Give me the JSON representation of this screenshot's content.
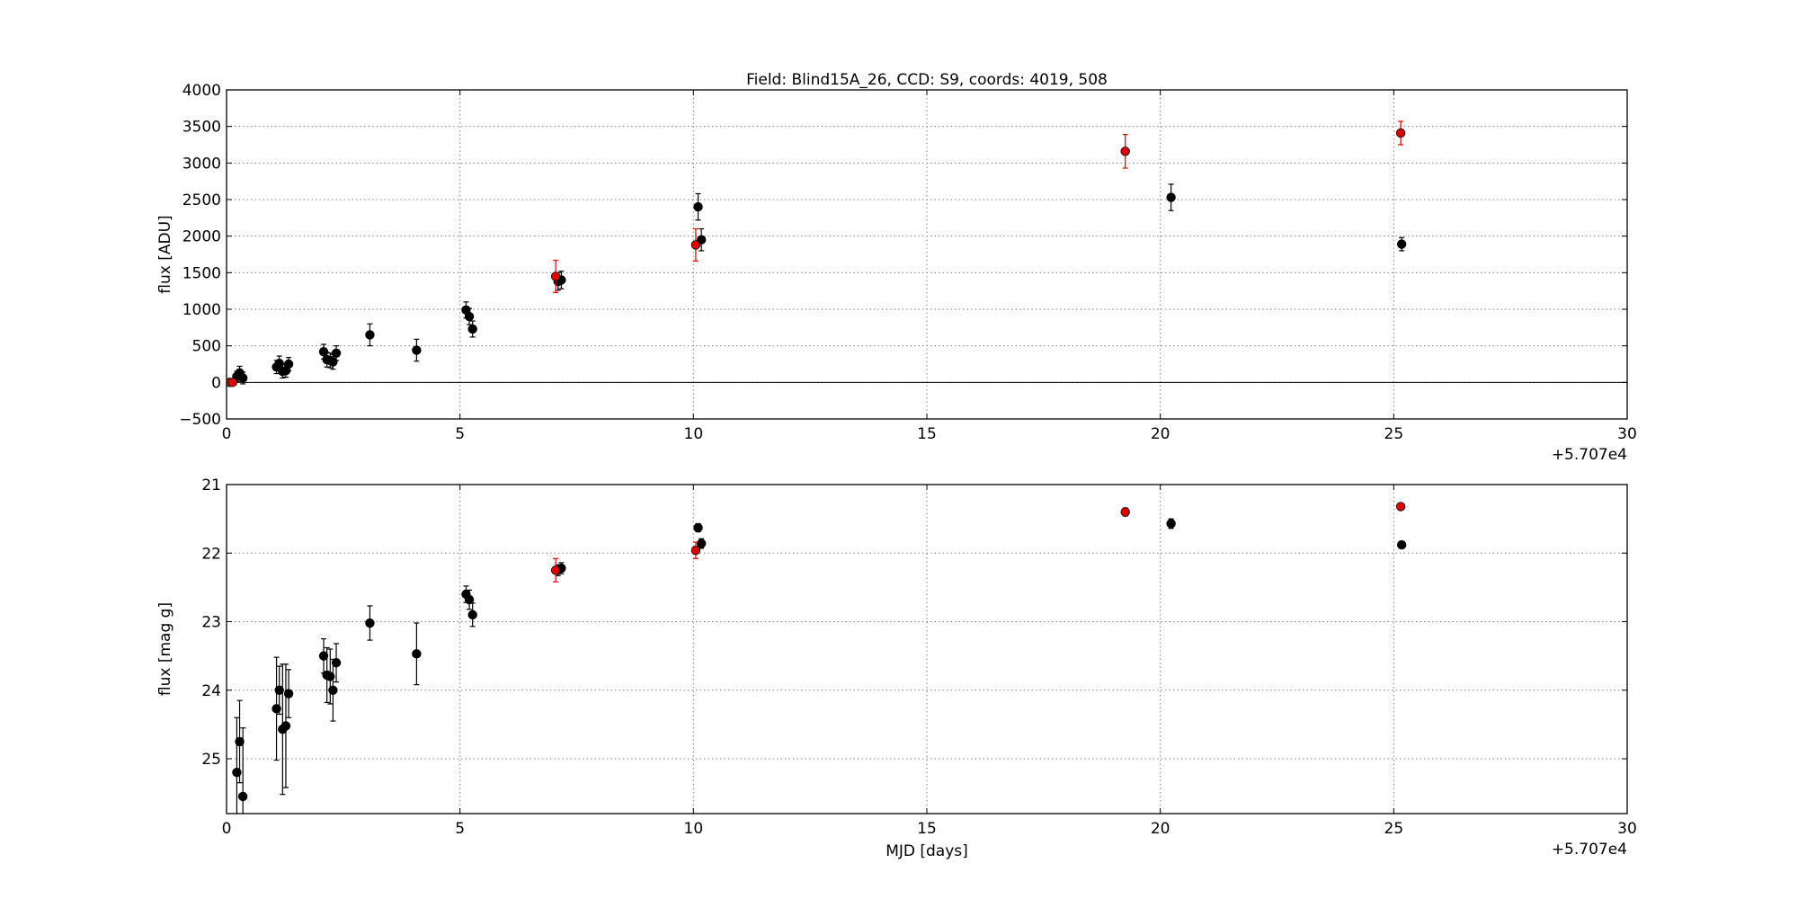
{
  "figure": {
    "title": "Field: Blind15A_26, CCD: S9, coords: 4019, 508",
    "x_offset_label": "+5.707e4",
    "xlabel": "MJD [days]"
  },
  "colors": {
    "black_marker": "#000000",
    "red_marker": "#dd0000",
    "grid": "#808080",
    "zero_line": "#000000"
  },
  "chart_data": [
    {
      "type": "scatter",
      "ylabel": "flux [ADU]",
      "xlabel": "",
      "grid": true,
      "x_offset": 57070,
      "xlim": [
        0,
        30
      ],
      "ylim": [
        -500,
        4000
      ],
      "xticks": [
        "0",
        "5",
        "10",
        "15",
        "20",
        "25",
        "30"
      ],
      "yticks": [
        "4000",
        "3500",
        "3000",
        "2500",
        "2000",
        "1500",
        "1000",
        "500",
        "0",
        "−500"
      ],
      "hline": 0,
      "series": [
        {
          "color": "black",
          "points": [
            {
              "x": 0.22,
              "y": 80,
              "err": 70
            },
            {
              "x": 0.28,
              "y": 130,
              "err": 90
            },
            {
              "x": 0.35,
              "y": 60,
              "err": 80
            },
            {
              "x": 1.07,
              "y": 210,
              "err": 90
            },
            {
              "x": 1.13,
              "y": 260,
              "err": 100
            },
            {
              "x": 1.2,
              "y": 150,
              "err": 90
            },
            {
              "x": 1.27,
              "y": 160,
              "err": 90
            },
            {
              "x": 1.33,
              "y": 250,
              "err": 90
            },
            {
              "x": 2.08,
              "y": 420,
              "err": 100
            },
            {
              "x": 2.15,
              "y": 310,
              "err": 100
            },
            {
              "x": 2.22,
              "y": 300,
              "err": 100
            },
            {
              "x": 2.28,
              "y": 280,
              "err": 100
            },
            {
              "x": 2.35,
              "y": 400,
              "err": 100
            },
            {
              "x": 3.07,
              "y": 650,
              "err": 150
            },
            {
              "x": 4.07,
              "y": 440,
              "err": 150
            },
            {
              "x": 5.13,
              "y": 990,
              "err": 110
            },
            {
              "x": 5.2,
              "y": 900,
              "err": 110
            },
            {
              "x": 5.27,
              "y": 730,
              "err": 110
            },
            {
              "x": 7.1,
              "y": 1380,
              "err": 120
            },
            {
              "x": 7.17,
              "y": 1400,
              "err": 120
            },
            {
              "x": 10.1,
              "y": 2400,
              "err": 180
            },
            {
              "x": 10.17,
              "y": 1950,
              "err": 150
            },
            {
              "x": 20.23,
              "y": 2530,
              "err": 180
            },
            {
              "x": 25.17,
              "y": 1890,
              "err": 90
            }
          ]
        },
        {
          "color": "red",
          "points": [
            {
              "x": 0.07,
              "y": 0,
              "err": 30
            },
            {
              "x": 0.13,
              "y": 0,
              "err": 30
            },
            {
              "x": 7.05,
              "y": 1450,
              "err": 220
            },
            {
              "x": 10.05,
              "y": 1880,
              "err": 220
            },
            {
              "x": 19.25,
              "y": 3160,
              "err": 230
            },
            {
              "x": 25.15,
              "y": 3410,
              "err": 160
            }
          ]
        }
      ]
    },
    {
      "type": "scatter",
      "ylabel": "flux [mag g]",
      "xlabel": "MJD [days]",
      "grid": true,
      "x_offset": 57070,
      "xlim": [
        0,
        30
      ],
      "ylim": [
        25.8,
        21
      ],
      "xticks": [
        "0",
        "5",
        "10",
        "15",
        "20",
        "25",
        "30"
      ],
      "yticks": [
        "21",
        "22",
        "23",
        "24",
        "25"
      ],
      "series": [
        {
          "color": "black",
          "points": [
            {
              "x": 0.22,
              "y": 25.2,
              "err": 0.8
            },
            {
              "x": 0.28,
              "y": 24.75,
              "err": 0.6
            },
            {
              "x": 0.35,
              "y": 25.55,
              "err": 1.0
            },
            {
              "x": 1.07,
              "y": 24.27,
              "err": 0.75
            },
            {
              "x": 1.13,
              "y": 24.0,
              "err": 0.35
            },
            {
              "x": 1.2,
              "y": 24.57,
              "err": 0.95
            },
            {
              "x": 1.27,
              "y": 24.52,
              "err": 0.9
            },
            {
              "x": 1.33,
              "y": 24.05,
              "err": 0.35
            },
            {
              "x": 2.08,
              "y": 23.5,
              "err": 0.25
            },
            {
              "x": 2.15,
              "y": 23.78,
              "err": 0.4
            },
            {
              "x": 2.22,
              "y": 23.8,
              "err": 0.4
            },
            {
              "x": 2.28,
              "y": 24.0,
              "err": 0.45
            },
            {
              "x": 2.35,
              "y": 23.6,
              "err": 0.28
            },
            {
              "x": 3.07,
              "y": 23.02,
              "err": 0.25
            },
            {
              "x": 4.07,
              "y": 23.47,
              "err": 0.45
            },
            {
              "x": 5.13,
              "y": 22.6,
              "err": 0.12
            },
            {
              "x": 5.2,
              "y": 22.68,
              "err": 0.14
            },
            {
              "x": 5.27,
              "y": 22.9,
              "err": 0.17
            },
            {
              "x": 7.1,
              "y": 22.25,
              "err": 0.08
            },
            {
              "x": 7.17,
              "y": 22.22,
              "err": 0.08
            },
            {
              "x": 10.1,
              "y": 21.63,
              "err": 0.06
            },
            {
              "x": 10.17,
              "y": 21.86,
              "err": 0.07
            },
            {
              "x": 20.23,
              "y": 21.57,
              "err": 0.07
            },
            {
              "x": 25.17,
              "y": 21.88,
              "err": 0.05
            }
          ]
        },
        {
          "color": "red",
          "points": [
            {
              "x": 7.05,
              "y": 22.25,
              "err": 0.17
            },
            {
              "x": 10.05,
              "y": 21.96,
              "err": 0.12
            },
            {
              "x": 19.25,
              "y": 21.4,
              "err": 0.06
            },
            {
              "x": 25.15,
              "y": 21.32,
              "err": 0.04
            }
          ]
        }
      ]
    }
  ]
}
